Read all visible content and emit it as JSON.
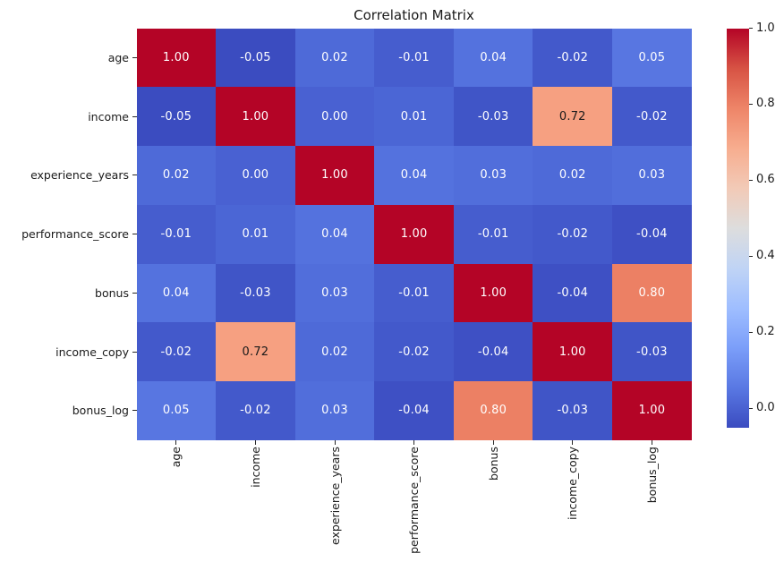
{
  "chart_data": {
    "type": "heatmap",
    "title": "Correlation Matrix",
    "categories": [
      "age",
      "income",
      "experience_years",
      "performance_score",
      "bonus",
      "income_copy",
      "bonus_log"
    ],
    "matrix": [
      [
        1.0,
        -0.05,
        0.02,
        -0.01,
        0.04,
        -0.02,
        0.05
      ],
      [
        -0.05,
        1.0,
        0.0,
        0.01,
        -0.03,
        0.72,
        -0.02
      ],
      [
        0.02,
        0.0,
        1.0,
        0.04,
        0.03,
        0.02,
        0.03
      ],
      [
        -0.01,
        0.01,
        0.04,
        1.0,
        -0.01,
        -0.02,
        -0.04
      ],
      [
        0.04,
        -0.03,
        0.03,
        -0.01,
        1.0,
        -0.04,
        0.8
      ],
      [
        -0.02,
        0.72,
        0.02,
        -0.02,
        -0.04,
        1.0,
        -0.03
      ],
      [
        0.05,
        -0.02,
        0.03,
        -0.04,
        0.8,
        -0.03,
        1.0
      ]
    ],
    "annotation_format": "2-decimals",
    "vmin": -0.05,
    "vmax": 1.0,
    "colormap": "coolwarm",
    "grid": false,
    "legend_position": "right-colorbar",
    "colorbar_ticks": [
      1.0,
      0.8,
      0.6,
      0.4,
      0.2,
      0.0
    ]
  },
  "colors": {
    "background": "#ffffff",
    "label_text": "#1a1a1a",
    "annotation_light": "#ffffff",
    "annotation_dark": "#1a1a1a",
    "value_fill": {
      "1.00": "#b40426",
      "0.80": "#ec8064",
      "0.72": "#f6a081",
      "0.05": "#5876e1",
      "0.04": "#5472de",
      "0.03": "#516edb",
      "0.02": "#4e6ad8",
      "0.01": "#4b66d5",
      "0.00": "#4961d2",
      "-0.01": "#465dce",
      "-0.02": "#4359cb",
      "-0.03": "#4055c7",
      "-0.04": "#3e50c4",
      "-0.05": "#3b4cc0"
    },
    "annotation_text_overrides": {
      "0.72": "#1a1a1a"
    },
    "colorbar_gradient_top_to_bottom": [
      "#b40426",
      "#d75344",
      "#ee8568",
      "#f7ad8f",
      "#f2cab7",
      "#dddddd",
      "#c0d4f5",
      "#9fbeff",
      "#7b9ef9",
      "#5978e3",
      "#3b4cc0"
    ]
  }
}
